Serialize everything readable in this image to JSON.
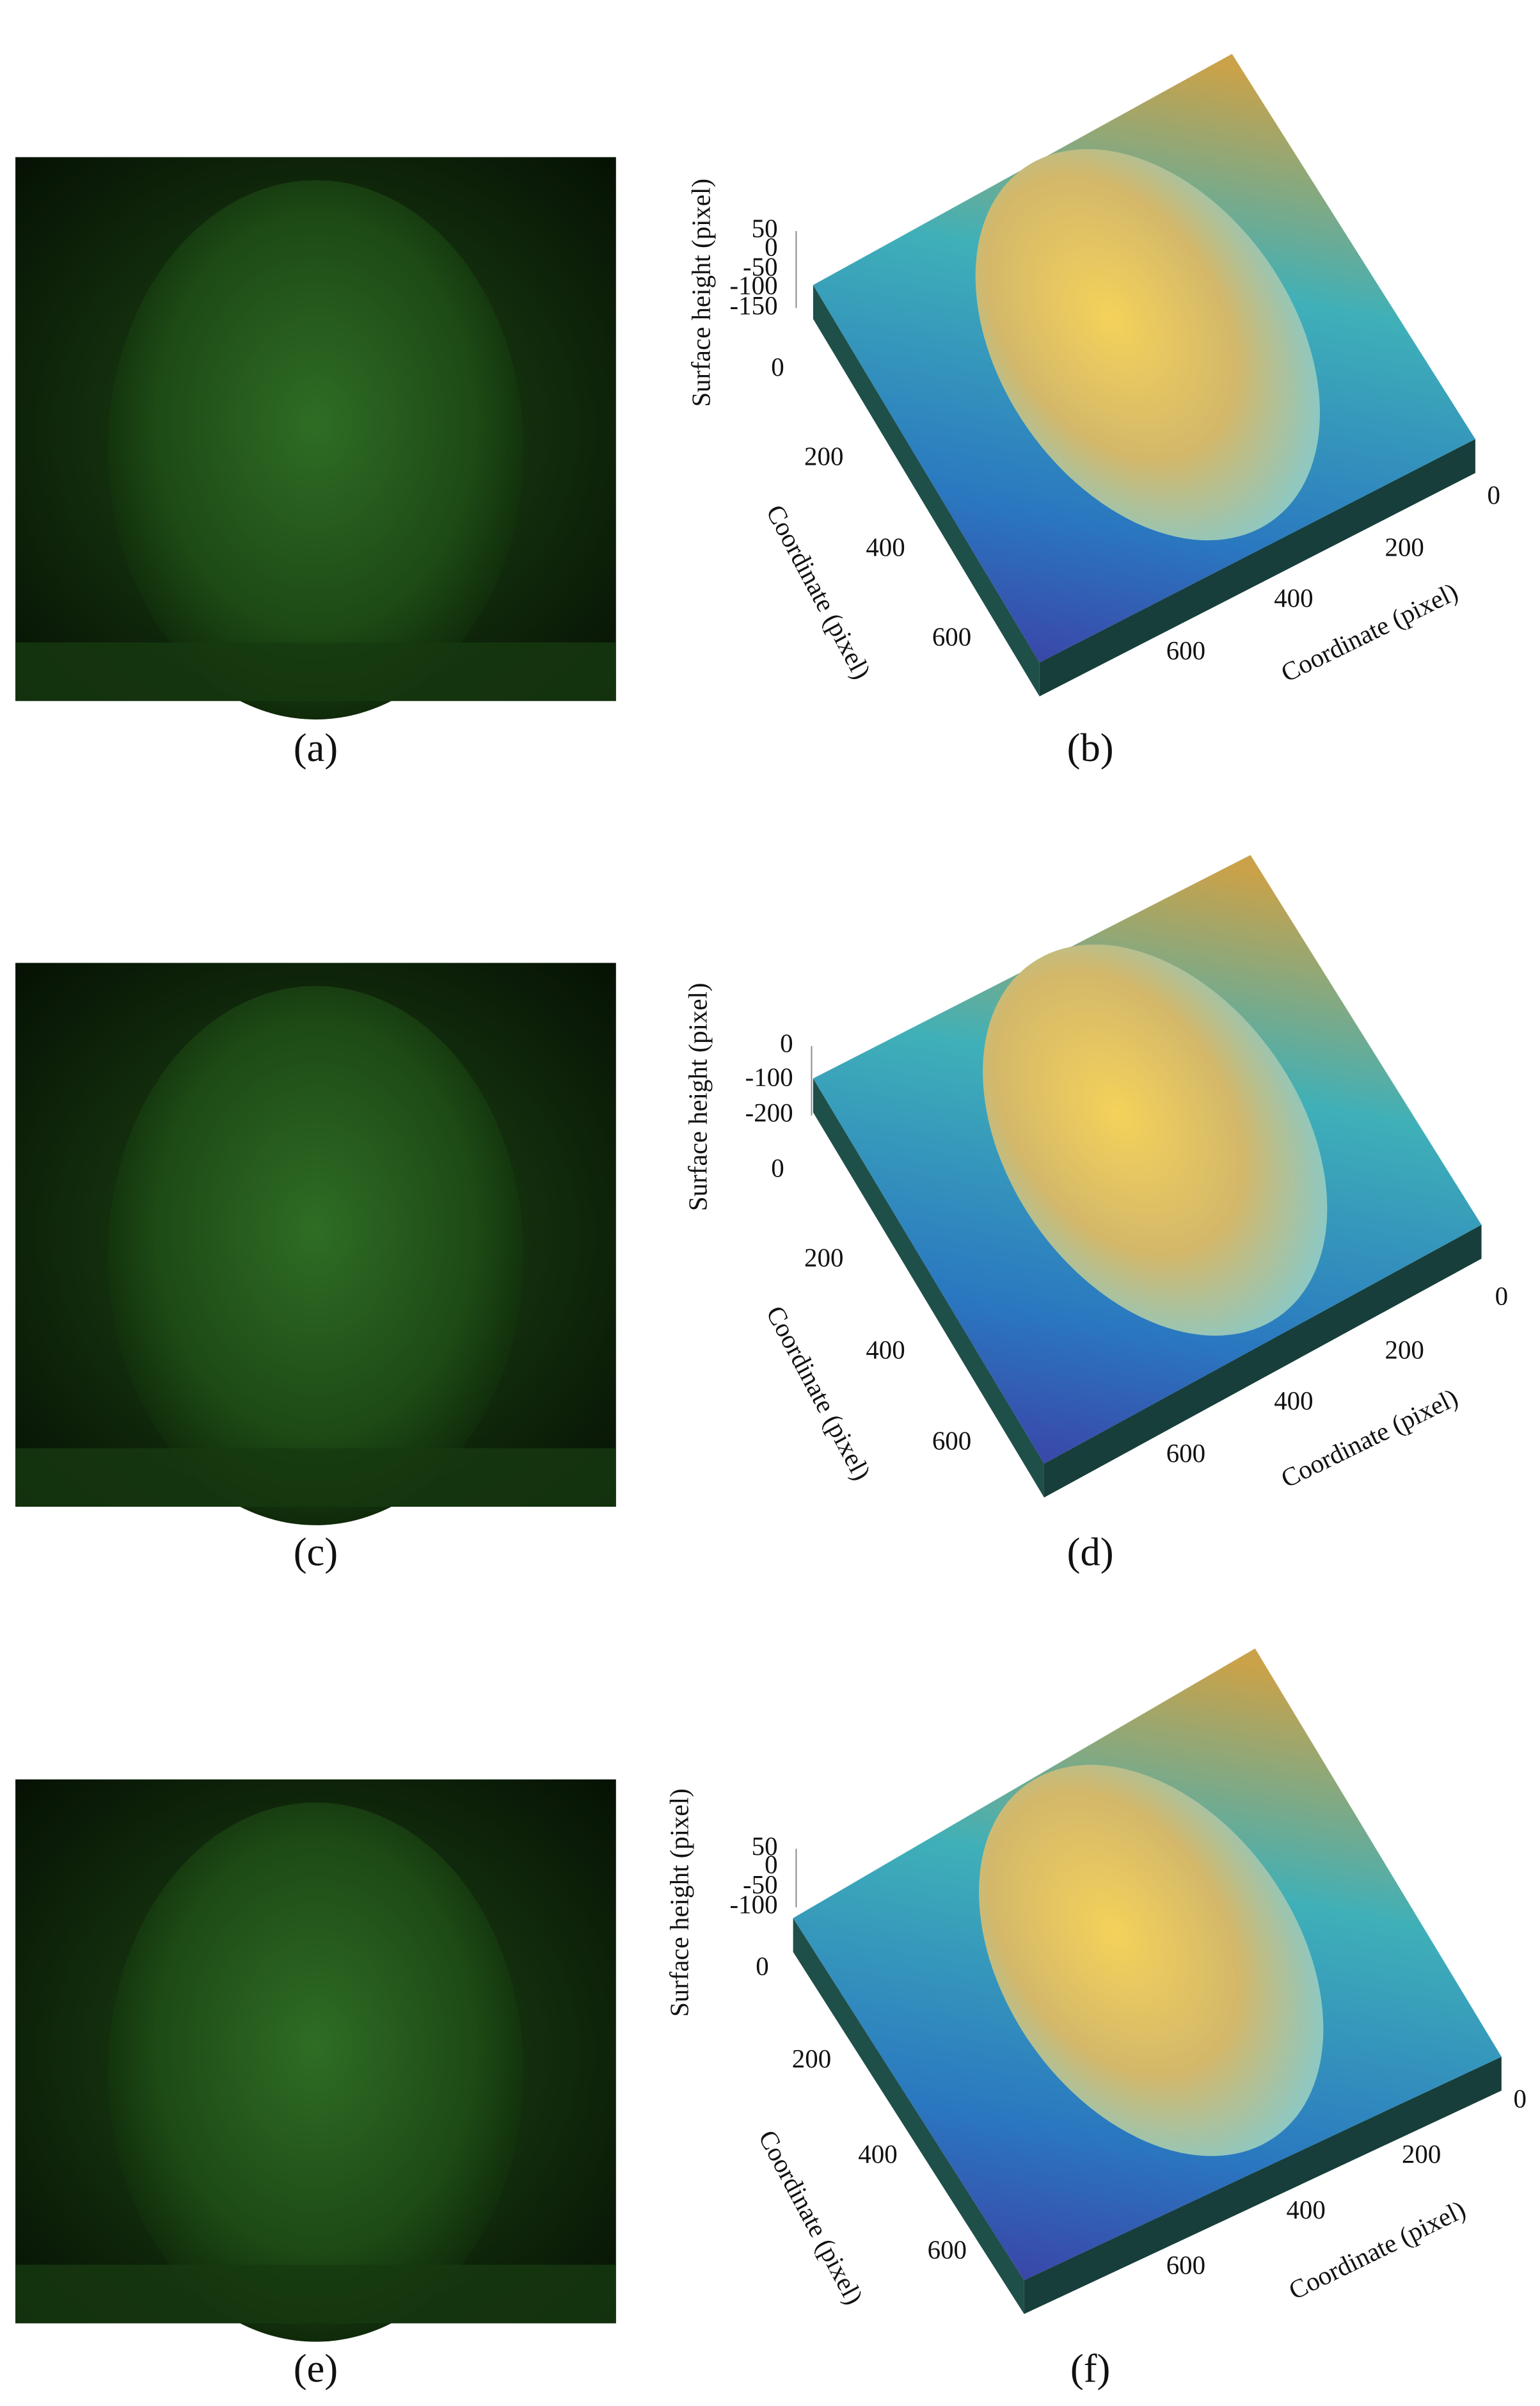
{
  "figure": {
    "rows": [
      {
        "photo_label": "(a)",
        "plot": {
          "label": "(b)",
          "z_axis_label": "Surface height (pixel)",
          "z_ticks": [
            50,
            0,
            -50,
            -100,
            -150
          ],
          "y_axis_label": "Coordinate (pixel)",
          "y_ticks": [
            0,
            200,
            400,
            600
          ],
          "x_axis_label": "Coordinate (pixel)",
          "x_ticks": [
            600,
            400,
            200,
            0
          ]
        }
      },
      {
        "photo_label": "(c)",
        "plot": {
          "label": "(d)",
          "z_axis_label": "Surface height (pixel)",
          "z_ticks": [
            0,
            -100,
            -200
          ],
          "y_axis_label": "Coordinate (pixel)",
          "y_ticks": [
            0,
            200,
            400,
            600
          ],
          "x_axis_label": "Coordinate (pixel)",
          "x_ticks": [
            600,
            400,
            200,
            0
          ]
        }
      },
      {
        "photo_label": "(e)",
        "plot": {
          "label": "(f)",
          "z_axis_label": "Surface height (pixel)",
          "z_ticks": [
            50,
            0,
            -50,
            -100
          ],
          "y_axis_label": "Coordinate (pixel)",
          "y_ticks": [
            0,
            200,
            400,
            600
          ],
          "x_axis_label": "Coordinate (pixel)",
          "x_ticks": [
            600,
            400,
            200,
            0
          ]
        }
      }
    ]
  }
}
